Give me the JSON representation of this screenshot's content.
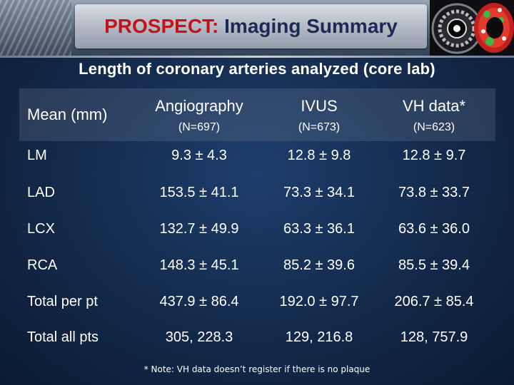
{
  "header": {
    "title_accent": "PROSPECT:",
    "title_rest": " Imaging Summary",
    "accent_color": "#c4121b",
    "title_color": "#1b2a55"
  },
  "subtitle": "Length of coronary arteries analyzed (core lab)",
  "table": {
    "corner_label": "Mean (mm)",
    "columns": [
      {
        "name": "Angiography",
        "n": "(N=697)"
      },
      {
        "name": "IVUS",
        "n": "(N=673)"
      },
      {
        "name": "VH data*",
        "n": "(N=623)"
      }
    ],
    "rows": [
      {
        "label": "LM",
        "values": [
          "9.3 ± 4.3",
          "12.8 ± 9.8",
          "12.8 ± 9.7"
        ]
      },
      {
        "label": "LAD",
        "values": [
          "153.5 ± 41.1",
          "73.3 ± 34.1",
          "73.8 ± 33.7"
        ]
      },
      {
        "label": "LCX",
        "values": [
          "132.7 ± 49.9",
          "63.3 ± 36.1",
          "63.6 ± 36.0"
        ]
      },
      {
        "label": "RCA",
        "values": [
          "148.3 ± 45.1",
          "85.2 ± 39.6",
          "85.5 ± 39.4"
        ]
      },
      {
        "label": "Total per pt",
        "values": [
          "437.9 ± 86.4",
          "192.0 ± 97.7",
          "206.7 ± 85.4"
        ]
      },
      {
        "label": "Total all pts",
        "values": [
          "305, 228.3",
          "129, 216.8",
          "128, 757.9"
        ]
      }
    ]
  },
  "footnote": "* Note: VH data doesn’t register if there is no plaque"
}
